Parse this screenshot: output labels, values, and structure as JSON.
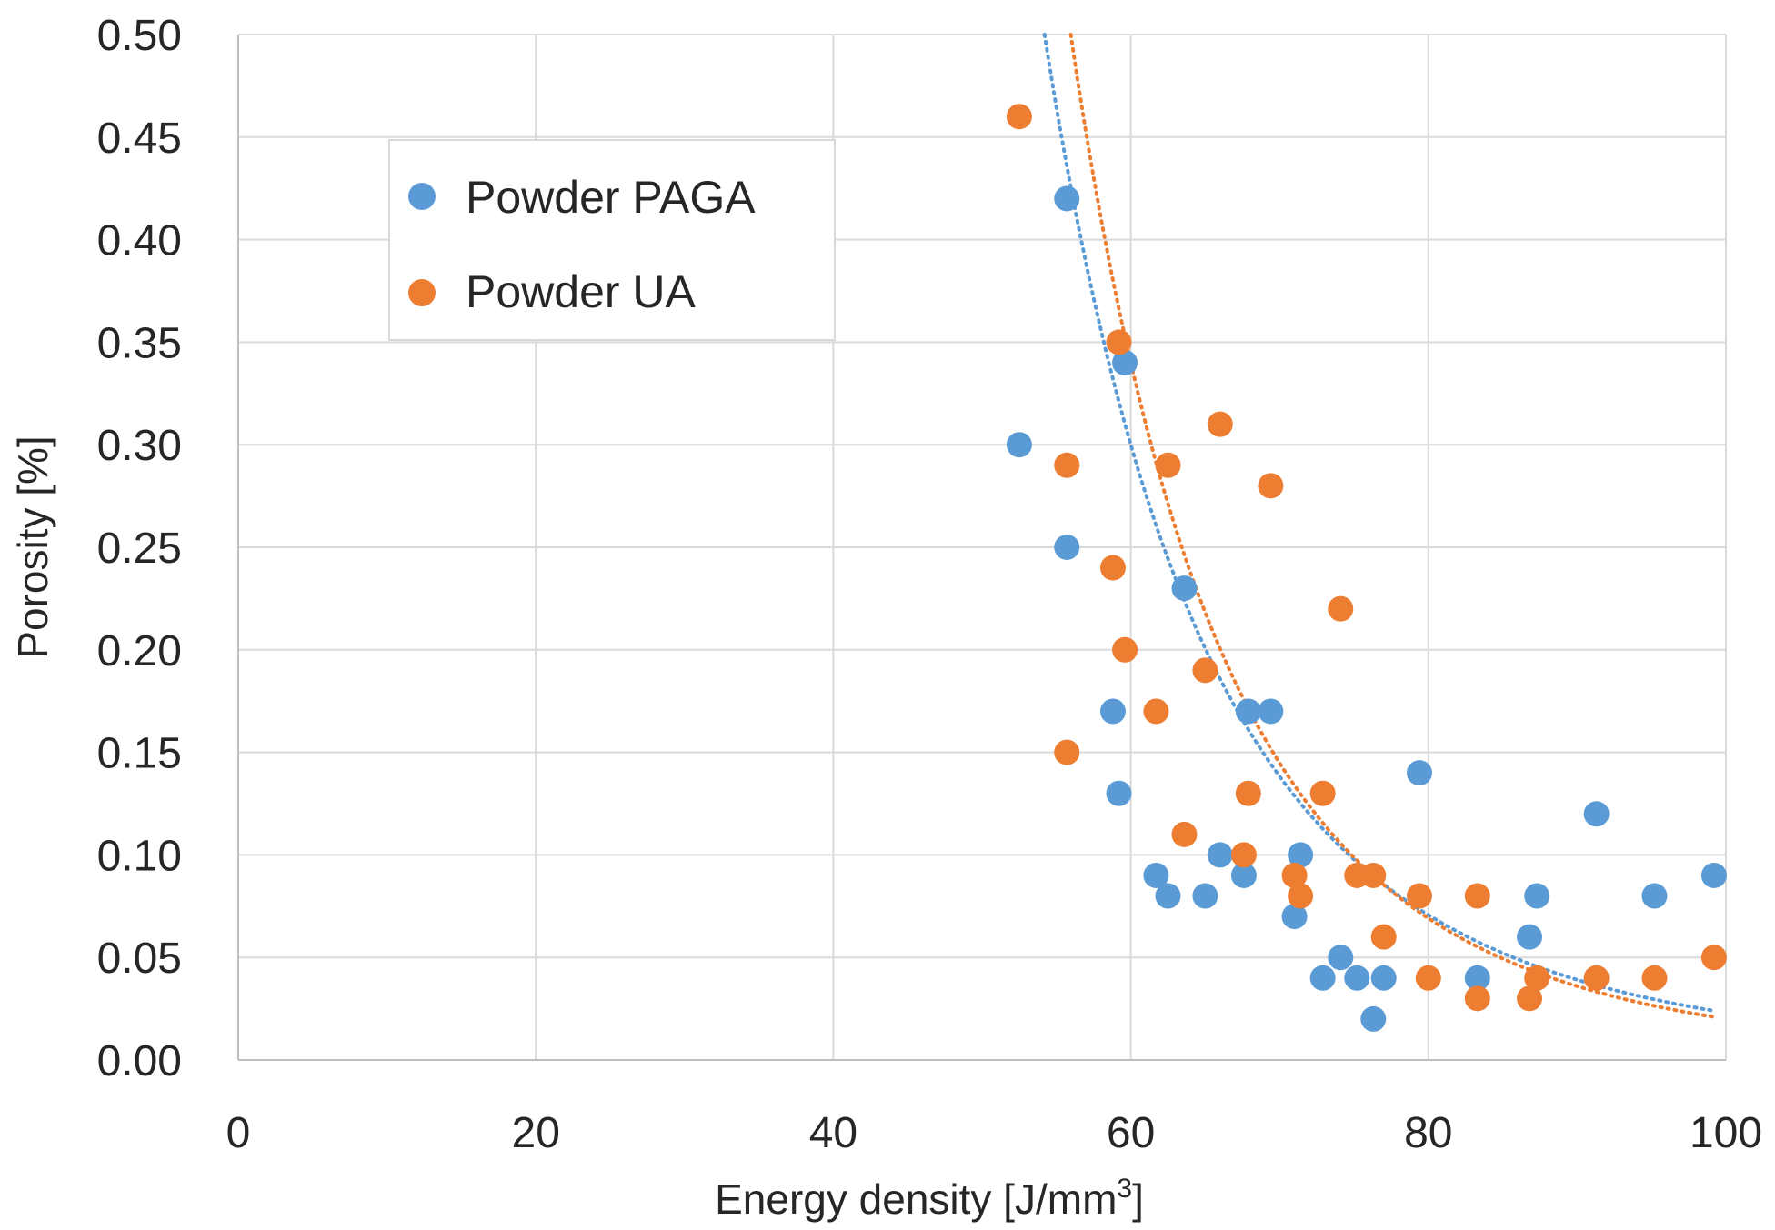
{
  "chart_data": {
    "type": "scatter",
    "title": "",
    "xlabel": "Energy density [J/mm",
    "xlabel_superscript": "3",
    "xlabel_suffix": "]",
    "ylabel": "Porosity  [%]",
    "xlim": [
      0,
      100
    ],
    "ylim": [
      0,
      0.5
    ],
    "grid": true,
    "legend_position": "top-left",
    "x_ticks": [
      "0",
      "20",
      "40",
      "60",
      "80",
      "100"
    ],
    "y_ticks": [
      "0.00",
      "0.05",
      "0.10",
      "0.15",
      "0.20",
      "0.25",
      "0.30",
      "0.35",
      "0.40",
      "0.45",
      "0.50"
    ],
    "series": [
      {
        "name": "Powder PAGA",
        "color": "#5B9BD5",
        "points": [
          [
            52.5,
            0.3
          ],
          [
            55.7,
            0.42
          ],
          [
            55.7,
            0.25
          ],
          [
            58.8,
            0.17
          ],
          [
            59.2,
            0.13
          ],
          [
            59.6,
            0.34
          ],
          [
            61.7,
            0.09
          ],
          [
            62.5,
            0.08
          ],
          [
            63.6,
            0.23
          ],
          [
            65.0,
            0.08
          ],
          [
            66.0,
            0.1
          ],
          [
            67.6,
            0.09
          ],
          [
            67.9,
            0.17
          ],
          [
            69.4,
            0.17
          ],
          [
            71.0,
            0.07
          ],
          [
            71.4,
            0.1
          ],
          [
            72.9,
            0.04
          ],
          [
            74.1,
            0.05
          ],
          [
            75.2,
            0.04
          ],
          [
            76.3,
            0.02
          ],
          [
            77.0,
            0.04
          ],
          [
            79.4,
            0.14
          ],
          [
            83.3,
            0.04
          ],
          [
            86.8,
            0.06
          ],
          [
            87.3,
            0.08
          ],
          [
            91.3,
            0.12
          ],
          [
            95.2,
            0.08
          ],
          [
            99.2,
            0.09
          ]
        ],
        "trendline": {
          "type": "power",
          "style": "dotted",
          "x_start": 50.5,
          "x_end": 99.2,
          "fit_points": [
            [
              51.0,
              0.5
            ],
            [
              60.0,
              0.3
            ],
            [
              99.2,
              0.024
            ]
          ]
        }
      },
      {
        "name": "Powder UA",
        "color": "#ED7D31",
        "points": [
          [
            52.5,
            0.46
          ],
          [
            55.7,
            0.29
          ],
          [
            55.7,
            0.15
          ],
          [
            58.8,
            0.24
          ],
          [
            59.2,
            0.35
          ],
          [
            59.6,
            0.2
          ],
          [
            61.7,
            0.17
          ],
          [
            62.5,
            0.29
          ],
          [
            63.6,
            0.11
          ],
          [
            65.0,
            0.19
          ],
          [
            66.0,
            0.31
          ],
          [
            67.6,
            0.1
          ],
          [
            67.9,
            0.13
          ],
          [
            69.4,
            0.28
          ],
          [
            71.0,
            0.09
          ],
          [
            71.4,
            0.08
          ],
          [
            72.9,
            0.13
          ],
          [
            74.1,
            0.22
          ],
          [
            75.2,
            0.09
          ],
          [
            76.3,
            0.09
          ],
          [
            77.0,
            0.06
          ],
          [
            79.4,
            0.08
          ],
          [
            80.0,
            0.04
          ],
          [
            83.3,
            0.08
          ],
          [
            83.3,
            0.03
          ],
          [
            86.8,
            0.03
          ],
          [
            87.3,
            0.04
          ],
          [
            91.3,
            0.04
          ],
          [
            95.2,
            0.04
          ],
          [
            99.2,
            0.05
          ]
        ],
        "trendline": {
          "type": "power",
          "style": "dotted",
          "x_start": 54.3,
          "x_end": 99.2,
          "fit_points": [
            [
              54.3,
              0.5
            ],
            [
              60.0,
              0.34
            ],
            [
              99.2,
              0.021
            ]
          ]
        }
      }
    ]
  }
}
